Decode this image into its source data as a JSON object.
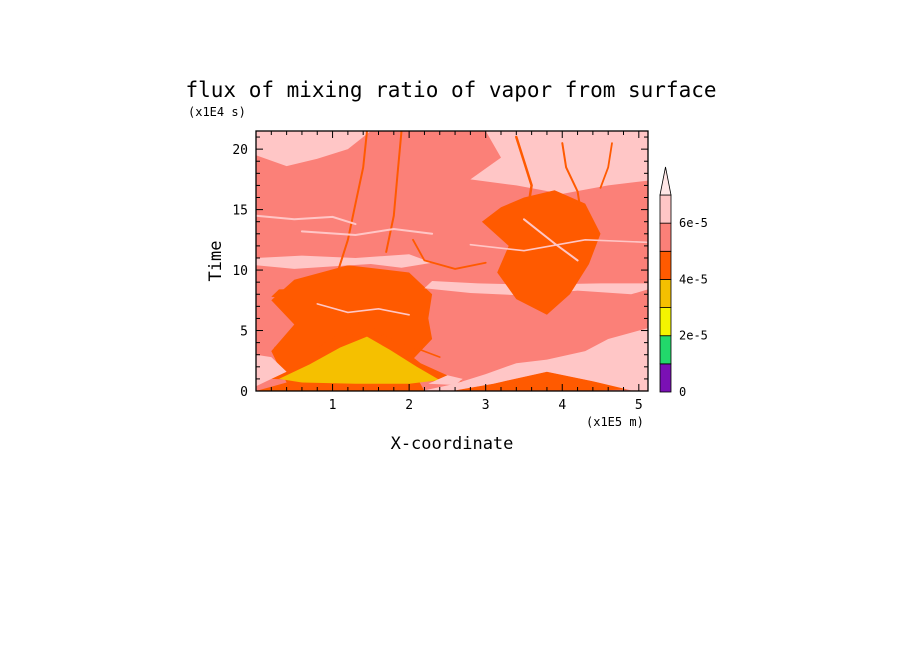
{
  "chart_data": {
    "type": "heatmap",
    "title": "flux of mixing ratio of vapor from surface",
    "xlabel": "X-coordinate",
    "ylabel": "Time",
    "x_multiplier": "(x1E5 m)",
    "y_multiplier": "(x1E4 s)",
    "xlim": [
      0,
      5.12
    ],
    "ylim": [
      0,
      21.5
    ],
    "x_ticks": [
      "1",
      "2",
      "3",
      "4",
      "5"
    ],
    "y_ticks": [
      "0",
      "5",
      "10",
      "15",
      "20"
    ],
    "colorbar": {
      "levels": [
        0,
        1e-05,
        2e-05,
        3e-05,
        4e-05,
        5e-05,
        6e-05,
        7e-05
      ],
      "tick_labels": [
        "0",
        "2e-5",
        "4e-5",
        "6e-5"
      ],
      "colors": [
        "#7a10b4",
        "#22d96b",
        "#f5f500",
        "#f5c000",
        "#ff5a00",
        "#fb8078",
        "#ffc6c6",
        "#ffe6e6"
      ],
      "extend": "max"
    },
    "regions": [
      {
        "name": "background",
        "level": 5
      },
      {
        "name": "early-band-left",
        "level": 4,
        "poly": [
          [
            0,
            0
          ],
          [
            0.4,
            0.7
          ],
          [
            0.2,
            3.3
          ],
          [
            0.5,
            5.5
          ],
          [
            0.2,
            7.5
          ],
          [
            0.5,
            9.2
          ],
          [
            1.2,
            10.4
          ],
          [
            2.0,
            9.8
          ],
          [
            2.3,
            8.0
          ],
          [
            2.25,
            6.0
          ],
          [
            2.3,
            4.3
          ],
          [
            2.0,
            2.3
          ],
          [
            2.2,
            0
          ]
        ]
      },
      {
        "name": "early-band-orange",
        "level": 4,
        "poly": [
          [
            0.2,
            1.0
          ],
          [
            0.55,
            2.5
          ],
          [
            1.1,
            4.8
          ],
          [
            1.4,
            5.8
          ],
          [
            1.75,
            4.3
          ],
          [
            2.15,
            2.3
          ],
          [
            2.6,
            1.0
          ],
          [
            2.7,
            0.8
          ],
          [
            2.1,
            0.8
          ],
          [
            1.3,
            0.8
          ],
          [
            0.6,
            0.9
          ]
        ]
      },
      {
        "name": "core-yellow",
        "level": 3,
        "poly": [
          [
            0.3,
            1.0
          ],
          [
            0.7,
            2.2
          ],
          [
            1.1,
            3.6
          ],
          [
            1.45,
            4.5
          ],
          [
            1.75,
            3.4
          ],
          [
            2.1,
            2.0
          ],
          [
            2.4,
            0.9
          ],
          [
            2.0,
            0.6
          ],
          [
            1.3,
            0.6
          ],
          [
            0.6,
            0.7
          ]
        ]
      },
      {
        "name": "right-low-yellow",
        "level": 3,
        "poly": [
          [
            3.35,
            0.5
          ],
          [
            3.65,
            1.0
          ],
          [
            3.85,
            1.3
          ],
          [
            4.1,
            0.8
          ],
          [
            4.35,
            0.4
          ],
          [
            3.9,
            0.3
          ]
        ]
      },
      {
        "name": "right-low-orange",
        "level": 4,
        "poly": [
          [
            2.6,
            0.05
          ],
          [
            3.1,
            0.6
          ],
          [
            3.8,
            1.6
          ],
          [
            4.4,
            0.8
          ],
          [
            4.9,
            0.15
          ],
          [
            4.5,
            0.05
          ],
          [
            3.0,
            0.05
          ]
        ]
      },
      {
        "name": "left-light-band",
        "level": 6,
        "poly": [
          [
            0,
            10.4
          ],
          [
            0.5,
            10.1
          ],
          [
            1.0,
            10.3
          ],
          [
            1.5,
            10.5
          ],
          [
            1.9,
            10.2
          ],
          [
            2.3,
            10.6
          ],
          [
            2.0,
            11.3
          ],
          [
            1.3,
            11.0
          ],
          [
            0.6,
            11.2
          ],
          [
            0,
            11.0
          ]
        ]
      },
      {
        "name": "left-low-light",
        "level": 6,
        "poly": [
          [
            0,
            0.4
          ],
          [
            0.4,
            1.6
          ],
          [
            0.2,
            2.8
          ],
          [
            0,
            3.0
          ]
        ]
      },
      {
        "name": "right-light-area",
        "level": 6,
        "poly": [
          [
            2.2,
            0.05
          ],
          [
            2.6,
            0.6
          ],
          [
            3.0,
            1.4
          ],
          [
            3.4,
            2.3
          ],
          [
            3.8,
            2.6
          ],
          [
            4.3,
            3.3
          ],
          [
            4.6,
            4.3
          ],
          [
            5.12,
            5.2
          ],
          [
            5.12,
            0.05
          ],
          [
            4.9,
            0.05
          ],
          [
            4.4,
            0.8
          ],
          [
            3.8,
            1.6
          ],
          [
            3.1,
            0.6
          ],
          [
            2.6,
            0.05
          ]
        ]
      },
      {
        "name": "top-light-right",
        "level": 6,
        "poly": [
          [
            3.0,
            21.5
          ],
          [
            3.2,
            19.3
          ],
          [
            2.8,
            17.5
          ],
          [
            3.4,
            17.0
          ],
          [
            4.0,
            16.3
          ],
          [
            4.6,
            17.0
          ],
          [
            5.12,
            17.4
          ],
          [
            5.12,
            21.5
          ]
        ]
      },
      {
        "name": "mid-light-streak",
        "level": 6,
        "poly": [
          [
            2.2,
            8.5
          ],
          [
            2.8,
            8.1
          ],
          [
            3.5,
            7.9
          ],
          [
            4.2,
            8.3
          ],
          [
            4.9,
            8.0
          ],
          [
            5.12,
            8.4
          ],
          [
            5.12,
            8.9
          ],
          [
            4.5,
            8.9
          ],
          [
            3.6,
            8.8
          ],
          [
            2.9,
            8.9
          ],
          [
            2.3,
            9.1
          ]
        ]
      },
      {
        "name": "top-left-light",
        "level": 6,
        "poly": [
          [
            0,
            21.5
          ],
          [
            0,
            19.5
          ],
          [
            0.4,
            18.6
          ],
          [
            0.8,
            19.2
          ],
          [
            1.2,
            20.0
          ],
          [
            1.5,
            21.5
          ]
        ]
      },
      {
        "name": "mid-right-orange",
        "level": 4,
        "poly": [
          [
            2.95,
            14.0
          ],
          [
            3.3,
            12.0
          ],
          [
            3.15,
            9.8
          ],
          [
            3.4,
            7.6
          ],
          [
            3.8,
            6.3
          ],
          [
            4.1,
            8.0
          ],
          [
            4.35,
            10.5
          ],
          [
            4.5,
            13.0
          ],
          [
            4.3,
            15.5
          ],
          [
            3.9,
            16.6
          ],
          [
            3.5,
            16.0
          ],
          [
            3.2,
            15.2
          ]
        ]
      },
      {
        "name": "lower-left-orange-spot",
        "level": 4,
        "poly": [
          [
            0.2,
            7.8
          ],
          [
            0.8,
            7.3
          ],
          [
            1.6,
            7.2
          ],
          [
            2.0,
            7.8
          ],
          [
            1.7,
            8.5
          ],
          [
            0.9,
            8.5
          ],
          [
            0.3,
            8.4
          ]
        ]
      },
      {
        "name": "low-left-light-lens",
        "level": 6,
        "poly": [
          [
            2.25,
            0.6
          ],
          [
            2.5,
            1.3
          ],
          [
            2.7,
            1.0
          ],
          [
            2.6,
            0.5
          ]
        ]
      }
    ]
  }
}
